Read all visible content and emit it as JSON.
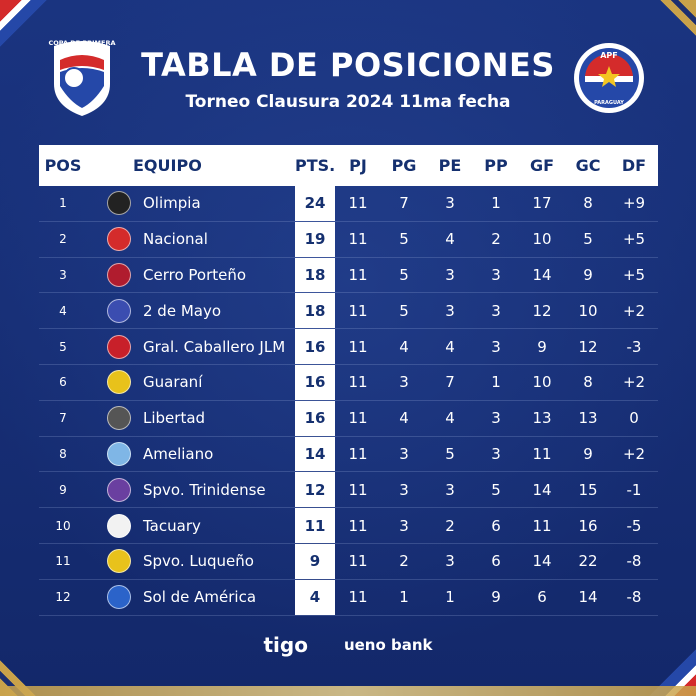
{
  "header": {
    "title": "TABLA DE POSICIONES",
    "subtitle": "Torneo Clausura 2024 11ma fecha"
  },
  "logos": {
    "left_text": "COPA DE PRIMERA",
    "right_text_top": "APF",
    "right_text_bottom": "PARAGUAY"
  },
  "columns": [
    "POS",
    "EQUIPO",
    "PTS.",
    "PJ",
    "PG",
    "PE",
    "PP",
    "GF",
    "GC",
    "DF"
  ],
  "rows": [
    {
      "pos": "1",
      "team": "Olimpia",
      "pts": "24",
      "pj": "11",
      "pg": "7",
      "pe": "3",
      "pp": "1",
      "gf": "17",
      "gc": "8",
      "df": "+9",
      "crest": "#222222"
    },
    {
      "pos": "2",
      "team": "Nacional",
      "pts": "19",
      "pj": "11",
      "pg": "5",
      "pe": "4",
      "pp": "2",
      "gf": "10",
      "gc": "5",
      "df": "+5",
      "crest": "#d42b2b"
    },
    {
      "pos": "3",
      "team": "Cerro Porteño",
      "pts": "18",
      "pj": "11",
      "pg": "5",
      "pe": "3",
      "pp": "3",
      "gf": "14",
      "gc": "9",
      "df": "+5",
      "crest": "#b01c2e"
    },
    {
      "pos": "4",
      "team": "2 de Mayo",
      "pts": "18",
      "pj": "11",
      "pg": "5",
      "pe": "3",
      "pp": "3",
      "gf": "12",
      "gc": "10",
      "df": "+2",
      "crest": "#3b4db0"
    },
    {
      "pos": "5",
      "team": "Gral. Caballero JLM",
      "pts": "16",
      "pj": "11",
      "pg": "4",
      "pe": "4",
      "pp": "3",
      "gf": "9",
      "gc": "12",
      "df": "-3",
      "crest": "#c8202a"
    },
    {
      "pos": "6",
      "team": "Guaraní",
      "pts": "16",
      "pj": "11",
      "pg": "3",
      "pe": "7",
      "pp": "1",
      "gf": "10",
      "gc": "8",
      "df": "+2",
      "crest": "#e8c21b"
    },
    {
      "pos": "7",
      "team": "Libertad",
      "pts": "16",
      "pj": "11",
      "pg": "4",
      "pe": "4",
      "pp": "3",
      "gf": "13",
      "gc": "13",
      "df": "0",
      "crest": "#555555"
    },
    {
      "pos": "8",
      "team": "Ameliano",
      "pts": "14",
      "pj": "11",
      "pg": "3",
      "pe": "5",
      "pp": "3",
      "gf": "11",
      "gc": "9",
      "df": "+2",
      "crest": "#7fb6e6"
    },
    {
      "pos": "9",
      "team": "Spvo. Trinidense",
      "pts": "12",
      "pj": "11",
      "pg": "3",
      "pe": "3",
      "pp": "5",
      "gf": "14",
      "gc": "15",
      "df": "-1",
      "crest": "#6a3fa0"
    },
    {
      "pos": "10",
      "team": "Tacuary",
      "pts": "11",
      "pj": "11",
      "pg": "3",
      "pe": "2",
      "pp": "6",
      "gf": "11",
      "gc": "16",
      "df": "-5",
      "crest": "#f2f2f2"
    },
    {
      "pos": "11",
      "team": "Spvo. Luqueño",
      "pts": "9",
      "pj": "11",
      "pg": "2",
      "pe": "3",
      "pp": "6",
      "gf": "14",
      "gc": "22",
      "df": "-8",
      "crest": "#e8c21b"
    },
    {
      "pos": "12",
      "team": "Sol de América",
      "pts": "4",
      "pj": "11",
      "pg": "1",
      "pe": "1",
      "pp": "9",
      "gf": "6",
      "gc": "14",
      "df": "-8",
      "crest": "#2b63c9"
    }
  ],
  "sponsors": {
    "tigo": "tigo",
    "ueno": "ueno bank"
  },
  "colors": {
    "background": "#142a6e",
    "header_row": "#ffffff",
    "accent_text": "#15306f",
    "gold": "#c9a24a",
    "red": "#d42b2b"
  }
}
